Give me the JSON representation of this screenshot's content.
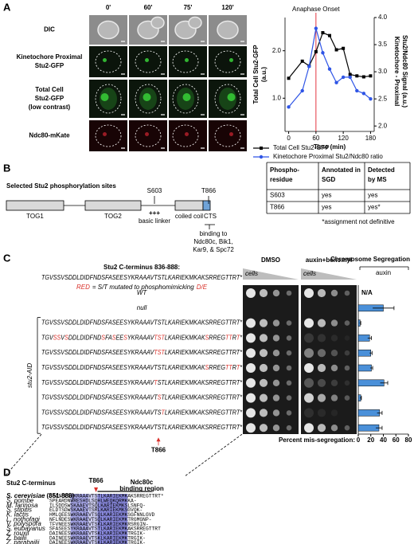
{
  "panel_a": {
    "label": "A",
    "time_points": [
      "0'",
      "60'",
      "75'",
      "120'"
    ],
    "rows": [
      [
        "DIC"
      ],
      [
        "Kinetochore Proximal",
        "Stu2-GFP"
      ],
      [
        "Total Cell",
        "Stu2-GFP",
        "(low contrast)"
      ],
      [
        "Ndc80-mKate"
      ]
    ]
  },
  "chart_data": [
    {
      "type": "line",
      "annotation": {
        "text": "Anaphase Onset",
        "x": 60
      },
      "xlabel": "Time (min)",
      "ylabel": [
        "Total Cell  Stu2-GFP",
        "(a.u.)"
      ],
      "y2label": [
        "Kinetochore - Proximal",
        "Stu2/Ndc80 Signal (a.u.)"
      ],
      "x": [
        0,
        30,
        45,
        60,
        75,
        90,
        105,
        120,
        135,
        150,
        165,
        180
      ],
      "series": [
        {
          "name": "Total Cell Stu2-GFP",
          "color": "#000000",
          "values": [
            1.42,
            1.78,
            1.68,
            1.98,
            2.38,
            2.32,
            2.02,
            2.05,
            1.5,
            1.47,
            1.45,
            1.47
          ]
        },
        {
          "name": "Kinetochore Proximal Stu2/Ndc80 ratio",
          "color": "#2f55e6",
          "axis": "y2",
          "values": [
            2.35,
            2.65,
            3.1,
            3.8,
            3.35,
            3.05,
            2.8,
            2.9,
            2.9,
            2.65,
            2.6,
            2.5
          ]
        }
      ],
      "xlim": [
        -8,
        188
      ],
      "xticks": [
        0,
        60,
        120,
        180
      ],
      "ylim": [
        0.3,
        2.7
      ],
      "yticks": [
        {
          "value": 1,
          "label": "1.0"
        },
        {
          "value": 2,
          "label": "2.0"
        }
      ],
      "y2lim": [
        1.9,
        4.0
      ],
      "y2ticks": [
        {
          "value": 2,
          "label": "2.0"
        },
        2.5,
        {
          "value": 3,
          "label": "3.0"
        },
        3.5,
        {
          "value": 4,
          "label": "4.0"
        }
      ],
      "legend": "bottom"
    },
    {
      "type": "bar",
      "orientation": "horizontal",
      "title": "Chromosome Segregation",
      "subtitle": "auxin",
      "xlabel": "Percent mis-segregation:",
      "missing_label": "N/A",
      "color": "#4a90d9",
      "values": [
        null,
        40,
        3,
        18,
        20,
        21,
        41,
        4,
        34,
        33
      ],
      "errors": [
        null,
        17,
        1,
        3,
        2,
        2,
        6,
        1,
        4,
        5
      ],
      "xlim": [
        0,
        80
      ],
      "xticks": [
        0,
        20,
        40,
        60,
        80
      ]
    }
  ],
  "panel_b": {
    "label": "B",
    "title": "Selected Stu2 phosphorylation sites",
    "domains": [
      "TOG1",
      "TOG2",
      "coiled coil",
      "CTS"
    ],
    "basic_marks": "+++",
    "linker": "basic linker",
    "sites": [
      "S603",
      "T866"
    ],
    "binding": [
      "binding to",
      "Ndc80c, Bik1,",
      "Kar9, & Spc72"
    ],
    "table": {
      "header": [
        [
          "Phospho-",
          "residue"
        ],
        [
          "Annotated in",
          "SGD"
        ],
        [
          "Detected",
          "by MS"
        ]
      ],
      "rows": [
        [
          "S603",
          "yes",
          "yes"
        ],
        [
          "T866",
          "yes",
          "yes*"
        ]
      ]
    },
    "note": "*assignment not definitive"
  },
  "panel_c": {
    "label": "C",
    "seq_title": "Stu2 C-terminus 836-888:",
    "seq": "TGVSSVSDDLDIDFNDSFASEESYKRAAAVTSTLKARIEKMKAKSRREGTTRT*",
    "key": [
      {
        "text": "RED",
        "mutated": true
      },
      {
        "text": "= S/T mutated to phosphomimicking"
      },
      {
        "text": "D/E",
        "mutated": true
      }
    ],
    "conditions": [
      "DMSO",
      "auxin+benomyl"
    ],
    "cells": "cells",
    "group": "stu2-AID",
    "site": "T866",
    "rows": [
      {
        "label": "WT"
      },
      {
        "label": "null"
      },
      {
        "segments": [
          {
            "text": "TGVSSVSDDLDIDFNDSFASEESYKRAAAVTSTLKARIEKMKAKSRREGTTRT*"
          }
        ]
      },
      {
        "segments": [
          {
            "text": "TGV"
          },
          {
            "text": "SS",
            "mutated": true
          },
          {
            "text": "V"
          },
          {
            "text": "S",
            "mutated": true
          },
          {
            "text": "DDLDIDFND"
          },
          {
            "text": "S",
            "mutated": true
          },
          {
            "text": "FA"
          },
          {
            "text": "S",
            "mutated": true
          },
          {
            "text": "EE"
          },
          {
            "text": "S",
            "mutated": true
          },
          {
            "text": "YKRAAAV"
          },
          {
            "text": "TST",
            "mutated": true
          },
          {
            "text": "LKARIEKMKAK"
          },
          {
            "text": "S",
            "mutated": true
          },
          {
            "text": "RREG"
          },
          {
            "text": "TT",
            "mutated": true
          },
          {
            "text": "R"
          },
          {
            "text": "T",
            "mutated": true
          },
          {
            "text": "*"
          }
        ]
      },
      {
        "segments": [
          {
            "text": "TGVSSVSDDLDIDFNDSFASEESYKRAAAV"
          },
          {
            "text": "TST",
            "mutated": true
          },
          {
            "text": "LKARIEKMKAKSRREGTTRT*"
          }
        ]
      },
      {
        "segments": [
          {
            "text": "TGVSSVSDDLDIDFNDSFASEESYKRAAAVTSTLKARIEKMKAK"
          },
          {
            "text": "S",
            "mutated": true
          },
          {
            "text": "RREG"
          },
          {
            "text": "TT",
            "mutated": true
          },
          {
            "text": "R"
          },
          {
            "text": "T",
            "mutated": true
          },
          {
            "text": "*"
          }
        ]
      },
      {
        "segments": [
          {
            "text": "TGVSSVSDDLDIDFNDSFASEESYKRAAAV"
          },
          {
            "text": "T",
            "mutated": true
          },
          {
            "text": "STLKARIEKMKAKSRREGTTRT*"
          }
        ]
      },
      {
        "segments": [
          {
            "text": "TGVSSVSDDLDIDFNDSFASEESYKRAAAVT"
          },
          {
            "text": "S",
            "mutated": true
          },
          {
            "text": "TLKARIEKMKAKSRREGTTRT*"
          }
        ]
      },
      {
        "segments": [
          {
            "text": "TGVSSVSDDLDIDFNDSFASEESYKRAAAVTS"
          },
          {
            "text": "T",
            "mutated": true
          },
          {
            "text": "LKARIEKMKAKSRREGTTRT*"
          }
        ]
      },
      {
        "segments": [
          {
            "text": "TGVSSVSDDLDIDFNDSFASEESYKRAAAVTSTLKARIEKMKAKSRREGTTRT*"
          }
        ]
      }
    ]
  },
  "panel_d": {
    "label": "D",
    "title": "Stu2 C-terminus",
    "site": "T866",
    "region": [
      "Ndc80c",
      "binding region"
    ],
    "species": [
      {
        "name": "S. cerevisiae",
        "range": "(851-888)",
        "seq": "SFASEESYKRAAAVTSTLKARIEKMKAKSRREGTTRT*"
      },
      {
        "name": "S. pombe",
        "seq": "SPEARDNWRESHDLSQHLWEQKQRMKKA-"
      },
      {
        "name": "M. farinosa",
        "seq": "ILSDDSWSKAAEVTSQLKARIEKMKSLSNFQ-"
      },
      {
        "name": "S. stipitis",
        "seq": "ELDTSDWSKAAEVTSRLKARIEKMKSGVQK-"
      },
      {
        "name": "K. lactis",
        "seq": "HMLQEESWKRAAEVTSQLKARIEKMKSGFNNLGVD"
      },
      {
        "name": "L. nothofagi",
        "seq": "NFLNDESWKRAAEVTSQLKARIEKMKTRGMGNP-"
      },
      {
        "name": "V. polyspora",
        "seq": "TFVNEESWKRAAEVTSKLKARIEKMKRSRGIN-"
      },
      {
        "name": "S. eubayanus",
        "seq": "SFASEESYKRAAAVTSTLKARIEKMKAKSRREGTTRT"
      },
      {
        "name": "Z. rouxii",
        "seq": "DAINEESWKRAAEVTSKLKARIEKMKTRGIK-"
      },
      {
        "name": "Z. bailii",
        "seq": "DAINEESWKRAAEVTSKLKARIEKMKTRGIK-"
      },
      {
        "name": "Z. parabailii",
        "seq": "DAINEESWKRAAEVTSKLKARIEKMKTRGIK-"
      }
    ]
  }
}
